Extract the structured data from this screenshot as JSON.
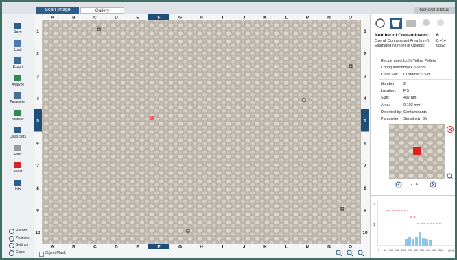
{
  "tabs": {
    "scan": "Scan Image",
    "gallery": "Gallery",
    "status": "General Status"
  },
  "sidebar": {
    "top": [
      "Save",
      "Load",
      "Export",
      "Analyze",
      "Parameter",
      "Statistic",
      "Class Sets",
      "Filter",
      "Reset",
      "Info"
    ],
    "bottom": [
      "Record",
      "Projector",
      "Settings",
      "Close"
    ]
  },
  "grid": {
    "columns": [
      "A",
      "B",
      "C",
      "D",
      "E",
      "F",
      "G",
      "H",
      "I",
      "J",
      "K",
      "L",
      "M",
      "N",
      "O"
    ],
    "rows": [
      "1",
      "2",
      "3",
      "4",
      "5",
      "6",
      "7",
      "8",
      "9",
      "10"
    ]
  },
  "footer": {
    "object_mask": "Object Mask"
  },
  "summary": {
    "title": "Number of Contaminants:",
    "count": "6",
    "rows": [
      {
        "label": "Overall Contaminant Area (mm²):",
        "value": "0.414"
      },
      {
        "label": "Estimated Number of Objects:",
        "value": "6852"
      }
    ]
  },
  "recipe": [
    {
      "label": "Recipe used:",
      "value": "Light Yellow Pellets"
    },
    {
      "label": "Configuration:",
      "value": "Black Specks"
    },
    {
      "label": "Class Set:",
      "value": "Customer 1 Set"
    }
  ],
  "details": [
    {
      "label": "Number:",
      "value": "2"
    },
    {
      "label": "Location:",
      "value": "F 5"
    },
    {
      "label": "Size:",
      "value": "437 µm"
    },
    {
      "label": "Area:",
      "value": "0.103 mm²"
    },
    {
      "label": "Detected by:",
      "value": "Contaminants"
    },
    {
      "label": "Parameter:",
      "value": "Sensitivity: 35"
    }
  ],
  "navigation": {
    "position": "2 / 6"
  },
  "histogram": {
    "y_labels": [
      "2",
      "1"
    ],
    "x_labels": [
      "0",
      "50",
      "100",
      "150",
      "200",
      "250",
      "300",
      "350",
      "400",
      "450",
      "500"
    ],
    "unit": "[µm]"
  }
}
